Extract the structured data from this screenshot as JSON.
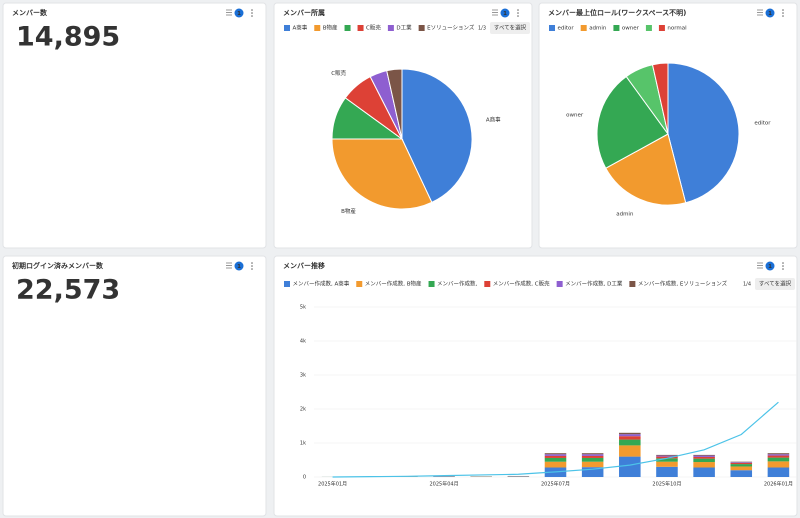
{
  "cards": [
    {
      "title": "メンバー数",
      "value": "14,895",
      "badge": "1"
    },
    {
      "title": "初期ログイン済みメンバー数",
      "value": "22,573",
      "badge": "1"
    }
  ],
  "chart_data": [
    {
      "type": "pie",
      "title": "メンバー所属",
      "badge": "1",
      "categories": [
        "A商事",
        "B物産",
        null,
        "C販売",
        "D工業",
        "Eソリューションズ"
      ],
      "values": [
        43,
        32,
        10,
        7.5,
        4,
        3.5
      ],
      "colors": [
        "#3f7fd8",
        "#f29a2e",
        "#34a853",
        "#dd4136",
        "#8e5fd0",
        "#7b5547"
      ],
      "pager": "1/3",
      "select_all": "すべてを選択"
    },
    {
      "type": "pie",
      "title": "メンバー最上位ロール(ワークスペース不明)",
      "badge": "1",
      "categories": [
        "editor",
        "admin",
        "owner",
        null,
        "normal"
      ],
      "values": [
        46,
        21,
        23,
        6.5,
        3.5
      ],
      "colors": [
        "#3f7fd8",
        "#f29a2e",
        "#34a853",
        "#57c46a",
        "#dd4136"
      ]
    },
    {
      "type": "combo",
      "title": "メンバー推移",
      "badge": "1",
      "stacked": true,
      "grid": true,
      "categories": [
        "2025年01月",
        null,
        null,
        "2025年04月",
        null,
        null,
        "2025年07月",
        null,
        null,
        "2025年10月",
        null,
        null,
        "2026年01月"
      ],
      "series": [
        {
          "name": "メンバー作成数, A商事",
          "color": "#3f7fd8",
          "type": "bar",
          "values": [
            2,
            5,
            8,
            12,
            8,
            12,
            280,
            290,
            600,
            300,
            280,
            200,
            280
          ]
        },
        {
          "name": "メンバー作成数, B物産",
          "color": "#f29a2e",
          "type": "bar",
          "values": [
            1,
            2,
            5,
            8,
            5,
            8,
            170,
            160,
            330,
            150,
            160,
            110,
            180
          ]
        },
        {
          "name": "メンバー作成数,",
          "color": "#34a853",
          "type": "bar",
          "values": [
            1,
            1,
            3,
            4,
            3,
            4,
            110,
            110,
            170,
            100,
            100,
            70,
            110
          ]
        },
        {
          "name": "メンバー作成数, C販売",
          "color": "#dd4136",
          "type": "bar",
          "values": [
            0,
            1,
            2,
            3,
            2,
            3,
            60,
            60,
            100,
            50,
            50,
            35,
            60
          ]
        },
        {
          "name": "メンバー作成数, D工業",
          "color": "#8e5fd0",
          "type": "bar",
          "values": [
            0,
            1,
            1,
            2,
            1,
            2,
            50,
            50,
            60,
            30,
            40,
            20,
            40
          ]
        },
        {
          "name": "メンバー作成数, Eソリューションズ",
          "color": "#7b5547",
          "type": "bar",
          "values": [
            0,
            0,
            1,
            1,
            1,
            1,
            30,
            30,
            40,
            20,
            20,
            15,
            30
          ]
        },
        {
          "name": null,
          "color": "#4cc3e8",
          "type": "line",
          "values": [
            0,
            10,
            20,
            40,
            60,
            80,
            150,
            230,
            350,
            550,
            800,
            1250,
            2200
          ]
        }
      ],
      "ylim": [
        0,
        5000
      ],
      "yticks": [
        0,
        {
          "value": 1000,
          "label": "1k"
        },
        {
          "value": 2000,
          "label": "2k"
        },
        {
          "value": 3000,
          "label": "3k"
        },
        {
          "value": 4000,
          "label": "4k"
        },
        {
          "value": 5000,
          "label": "5k"
        }
      ],
      "pager": "1/4",
      "select_all": "すべてを選択"
    }
  ]
}
